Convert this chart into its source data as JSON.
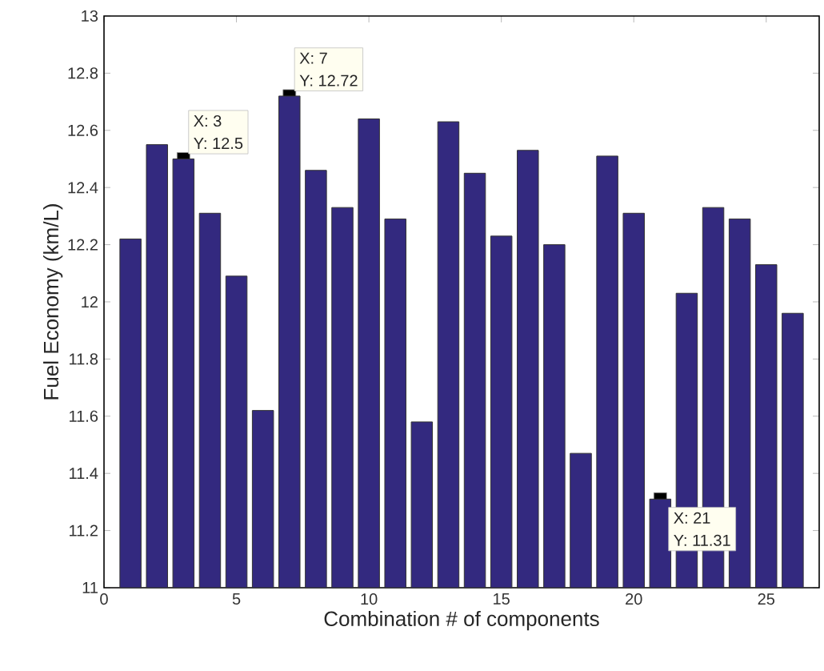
{
  "chart_data": {
    "type": "bar",
    "xlabel": "Combination # of components",
    "ylabel": "Fuel Economy (km/L)",
    "x": [
      1,
      2,
      3,
      4,
      5,
      6,
      7,
      8,
      9,
      10,
      11,
      12,
      13,
      14,
      15,
      16,
      17,
      18,
      19,
      20,
      21,
      22,
      23,
      24,
      25,
      26
    ],
    "values": [
      12.22,
      12.55,
      12.5,
      12.31,
      12.09,
      11.62,
      12.72,
      12.46,
      12.33,
      12.64,
      12.29,
      11.58,
      12.63,
      12.45,
      12.23,
      12.53,
      12.2,
      11.47,
      12.51,
      12.31,
      11.31,
      12.03,
      12.33,
      12.29,
      12.13,
      11.96
    ],
    "color": "#33297f",
    "xlim": [
      0,
      27
    ],
    "xticks": [
      0,
      5,
      10,
      15,
      20,
      25
    ],
    "ylim": [
      11,
      13
    ],
    "yticks": [
      11,
      11.2,
      11.4,
      11.6,
      11.8,
      12,
      12.2,
      12.4,
      12.6,
      12.8,
      13
    ],
    "annotations": [
      {
        "text": "X: 3",
        "x": 3,
        "y": 12.5
      },
      {
        "text": "Y: 12.5",
        "x": 3,
        "y": 12.5
      },
      {
        "text": "X: 7",
        "x": 7,
        "y": 12.72
      },
      {
        "text": "Y: 12.72",
        "x": 7,
        "y": 12.72
      },
      {
        "text": "X: 21",
        "x": 21,
        "y": 11.31
      },
      {
        "text": "Y: 11.31",
        "x": 21,
        "y": 11.31
      }
    ]
  }
}
